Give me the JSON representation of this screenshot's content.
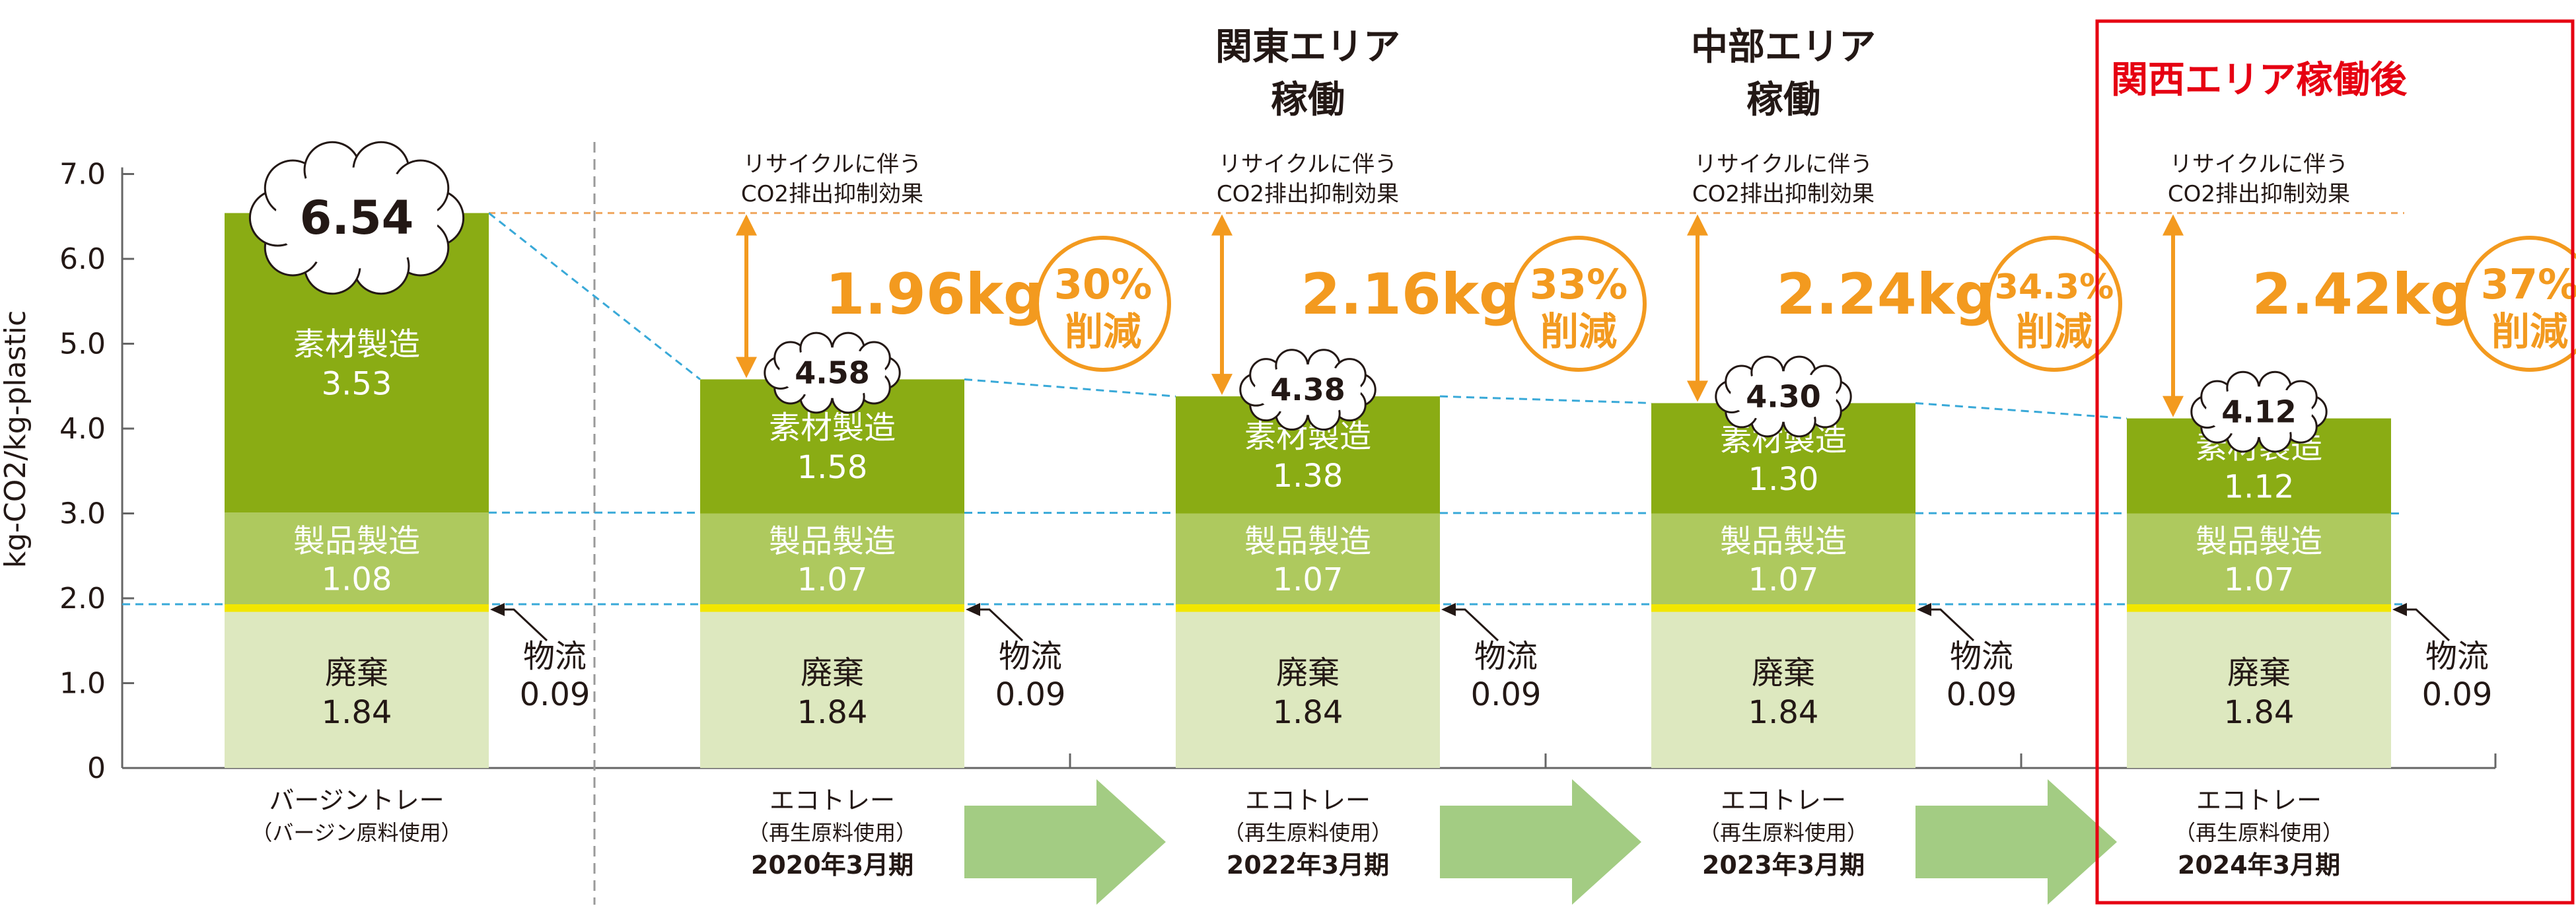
{
  "chart_data": {
    "type": "bar",
    "stacked": true,
    "ylabel": "kg-CO2/kg-plastic",
    "ylim": [
      0,
      7.0
    ],
    "yticks": [
      "0",
      "1.0",
      "2.0",
      "3.0",
      "4.0",
      "5.0",
      "6.0",
      "7.0"
    ],
    "grid": false,
    "segment_labels": {
      "material": "素材製造",
      "product": "製品製造",
      "disposal": "廃棄",
      "logistics": "物流"
    },
    "bars": [
      {
        "category_line1": "バージントレー",
        "category_line2": "（バージン原料使用）",
        "period": "",
        "total": "6.54",
        "material": 3.53,
        "product": 1.08,
        "logistics": 0.09,
        "disposal": 1.84
      },
      {
        "category_line1": "エコトレー",
        "category_line2": "（再生原料使用）",
        "period": "2020年3月期",
        "total": "4.58",
        "material": 1.58,
        "product": 1.07,
        "logistics": 0.09,
        "disposal": 1.84
      },
      {
        "category_line1": "エコトレー",
        "category_line2": "（再生原料使用）",
        "period": "2022年3月期",
        "total": "4.38",
        "material": 1.38,
        "product": 1.07,
        "logistics": 0.09,
        "disposal": 1.84
      },
      {
        "category_line1": "エコトレー",
        "category_line2": "（再生原料使用）",
        "period": "2023年3月期",
        "total": "4.30",
        "material": 1.3,
        "product": 1.07,
        "logistics": 0.09,
        "disposal": 1.84
      },
      {
        "category_line1": "エコトレー",
        "category_line2": "（再生原料使用）",
        "period": "2024年3月期",
        "total": "4.12",
        "material": 1.12,
        "product": 1.07,
        "logistics": 0.09,
        "disposal": 1.84
      }
    ],
    "effects": [
      {
        "caption_line1": "リサイクルに伴う",
        "caption_line2": "CO2排出抑制効果",
        "reduction": "1.96kg",
        "pct": "30%",
        "pct_label": "削減"
      },
      {
        "caption_line1": "リサイクルに伴う",
        "caption_line2": "CO2排出抑制効果",
        "reduction": "2.16kg",
        "pct": "33%",
        "pct_label": "削減"
      },
      {
        "caption_line1": "リサイクルに伴う",
        "caption_line2": "CO2排出抑制効果",
        "reduction": "2.24kg",
        "pct": "34.3%",
        "pct_label": "削減"
      },
      {
        "caption_line1": "リサイクルに伴う",
        "caption_line2": "CO2排出抑制効果",
        "reduction": "2.42kg",
        "pct": "37%",
        "pct_label": "削減"
      }
    ],
    "headings": [
      {
        "line1": "関東エリア",
        "line2": "稼働"
      },
      {
        "line1": "中部エリア",
        "line2": "稼働"
      },
      {
        "line1": "関西エリア稼働後",
        "line2": ""
      }
    ],
    "colors": {
      "material": "#8aac14",
      "product": "#aec95e",
      "disposal": "#dde8bf",
      "logistics_line": "#f2e600",
      "accent_orange": "#f39a1f",
      "highlight_red": "#e60012",
      "reference_line": "#f0a860",
      "trend_line": "#39a9d8",
      "step_arrow": "#a3cc83",
      "text": "#231815"
    }
  }
}
